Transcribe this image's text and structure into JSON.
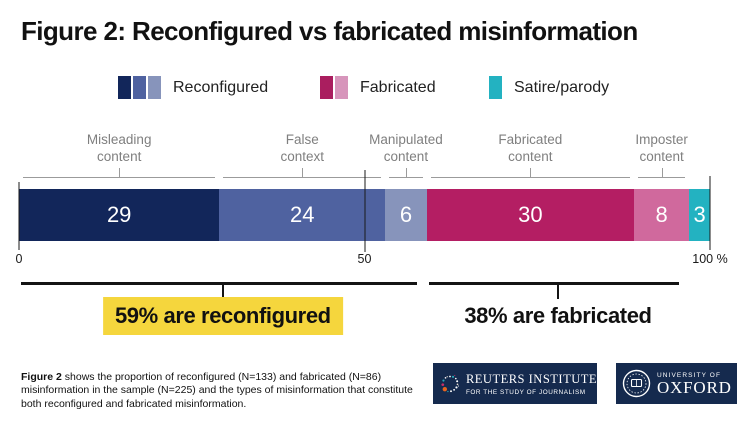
{
  "title": "Figure 2: Reconfigured vs fabricated misinformation",
  "legend": {
    "items": [
      {
        "label": "Reconfigured",
        "swatches": [
          "#12265a",
          "#4f62a0",
          "#8794bb"
        ]
      },
      {
        "label": "Fabricated",
        "swatches": [
          "#aa1e5f",
          "#d795bb"
        ]
      },
      {
        "label": "Satire/parody",
        "swatches": [
          "#23b2c1"
        ]
      }
    ]
  },
  "chart_data": {
    "type": "bar",
    "stacked": true,
    "orientation": "horizontal",
    "title": "Figure 2: Reconfigured vs fabricated misinformation",
    "xlim": [
      0,
      100
    ],
    "x_ticks": [
      {
        "label": "0",
        "pos": 0
      },
      {
        "label": "50",
        "pos": 50
      },
      {
        "label": "100 %",
        "pos": 100
      }
    ],
    "segments": [
      {
        "label": "Misleading content",
        "group": "Reconfigured",
        "value": 29,
        "color": "#12265a",
        "show_bracket": true
      },
      {
        "label": "False context",
        "group": "Reconfigured",
        "value": 24,
        "color": "#4f62a0",
        "show_bracket": true
      },
      {
        "label": "Manipulated content",
        "group": "Reconfigured",
        "value": 6,
        "color": "#8794bb",
        "show_bracket": true
      },
      {
        "label": "Fabricated content",
        "group": "Fabricated",
        "value": 30,
        "color": "#b41e63",
        "show_bracket": true
      },
      {
        "label": "Imposter content",
        "group": "Fabricated",
        "value": 8,
        "color": "#d0699d",
        "show_bracket": true
      },
      {
        "label": "Satire/parody",
        "group": "Satire/parody",
        "value": 3,
        "color": "#23b2c1",
        "show_bracket": false
      }
    ],
    "annotations": [
      {
        "label": "59% are reconfigured",
        "from": 0,
        "to": 59,
        "highlighted": true
      },
      {
        "label": "38% are fabricated",
        "from": 59,
        "to": 97,
        "highlighted": false
      }
    ]
  },
  "colors": {
    "highlight": "#f5d63d",
    "logo_background": "#152a4e"
  },
  "caption": {
    "lead": "Figure 2",
    "rest": " shows the proportion of reconfigured (N=133) and fabricated (N=86) misinformation in the sample (N=225) and the types of misinformation that constitute both reconfigured and fabricated misinformation."
  },
  "logos": {
    "reuters": {
      "line1": "REUTERS INSTITUTE",
      "line2": "FOR THE STUDY OF JOURNALISM"
    },
    "oxford": {
      "line1": "UNIVERSITY OF",
      "line2": "OXFORD"
    }
  }
}
